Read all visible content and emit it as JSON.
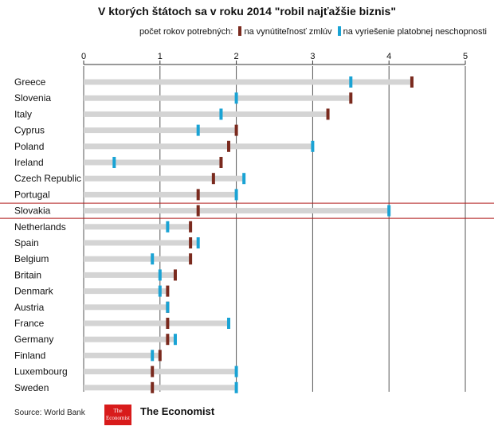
{
  "chart_data": {
    "type": "bar",
    "title": "V ktorých štátoch sa v roku 2014 \"robil najťažšie biznis\"",
    "legend_title": "počet rokov potrebných:",
    "xlim": [
      0,
      5
    ],
    "xticks": [
      0,
      1,
      2,
      3,
      4,
      5
    ],
    "grid": true,
    "highlight": "Slovakia",
    "categories": [
      "Greece",
      "Slovenia",
      "Italy",
      "Cyprus",
      "Poland",
      "Ireland",
      "Czech Republic",
      "Portugal",
      "Slovakia",
      "Netherlands",
      "Spain",
      "Belgium",
      "Britain",
      "Denmark",
      "Austria",
      "France",
      "Germany",
      "Finland",
      "Luxembourg",
      "Sweden"
    ],
    "series": [
      {
        "name": "na vynútiteľnosť zmlúv",
        "color": "#7a2a1e",
        "values": [
          4.3,
          3.5,
          3.2,
          2.0,
          1.9,
          1.8,
          1.7,
          1.5,
          1.5,
          1.4,
          1.4,
          1.4,
          1.2,
          1.1,
          1.1,
          1.1,
          1.1,
          1.0,
          0.9,
          0.9
        ]
      },
      {
        "name": "na vyriešenie platobnej neschopnosti",
        "color": "#1aa3d4",
        "values": [
          3.5,
          2.0,
          1.8,
          1.5,
          3.0,
          0.4,
          2.1,
          2.0,
          4.0,
          1.1,
          1.5,
          0.9,
          1.0,
          1.0,
          1.1,
          1.9,
          1.2,
          0.9,
          2.0,
          2.0
        ]
      }
    ]
  },
  "footer": {
    "source": "Source: World Bank",
    "logo_line1": "The",
    "logo_line2": "Economist",
    "logo_text": "The Economist"
  }
}
